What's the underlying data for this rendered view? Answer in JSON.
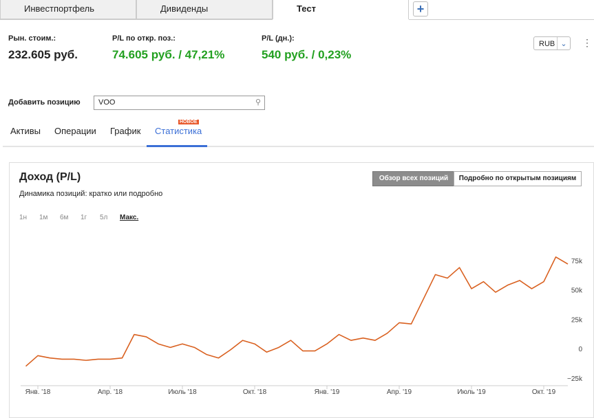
{
  "tabs": [
    "Инвестпортфель",
    "Дивиденды",
    "Тест"
  ],
  "summary": [
    {
      "label": "Рын. стоим.:",
      "value": "232.605 руб."
    },
    {
      "label": "P/L по откр. поз.:",
      "value": "74.605 руб. / 47,21%"
    },
    {
      "label": "P/L (дн.):",
      "value": "540 руб. / 0,23%"
    }
  ],
  "currency": "RUB",
  "add_position": {
    "label": "Добавить позицию",
    "input": "VOO"
  },
  "nav": {
    "items": [
      "Активы",
      "Операции",
      "График",
      "Статистика"
    ],
    "badge": "НОВОЕ"
  },
  "panel": {
    "ranges": [
      "1н",
      "1м",
      "6м",
      "1г",
      "5л",
      "Макс."
    ],
    "buttons": [
      "Обзор всех позиций",
      "Подробно по открытым позициям"
    ]
  },
  "chart_data": {
    "type": "line",
    "title": "Доход (P/L)",
    "subtitle": "Динамика позиций: кратко или подробно",
    "categories": [
      null,
      "Янв. '18",
      null,
      null,
      null,
      null,
      null,
      "Апр. '18",
      null,
      null,
      null,
      null,
      null,
      "Июль '18",
      null,
      null,
      null,
      null,
      null,
      "Окт. '18",
      null,
      null,
      null,
      null,
      null,
      "Янв. '19",
      null,
      null,
      null,
      null,
      null,
      "Апр. '19",
      null,
      null,
      null,
      null,
      null,
      "Июль '19",
      null,
      null,
      null,
      null,
      null,
      "Окт. '19",
      null,
      null
    ],
    "values": [
      -15000,
      -6000,
      -8000,
      -9000,
      -9000,
      -10000,
      -9000,
      -9000,
      -8000,
      12000,
      10000,
      4000,
      1000,
      4000,
      1000,
      -5000,
      -8000,
      -1000,
      7000,
      4000,
      -3000,
      1000,
      7000,
      -2000,
      -2000,
      4000,
      12000,
      7000,
      9000,
      7000,
      13000,
      22000,
      21000,
      42000,
      63000,
      60000,
      69000,
      51000,
      57000,
      48000,
      54000,
      58000,
      51000,
      57000,
      78000,
      72000
    ],
    "color": "#d9601f",
    "ylim": [
      -31000,
      89000
    ],
    "yticks": [
      {
        "value": -25000,
        "label": "−25k"
      },
      {
        "value": 0,
        "label": "0"
      },
      {
        "value": 25000,
        "label": "25k"
      },
      {
        "value": 50000,
        "label": "50k"
      },
      {
        "value": 75000,
        "label": "75k"
      }
    ],
    "grid": false
  }
}
